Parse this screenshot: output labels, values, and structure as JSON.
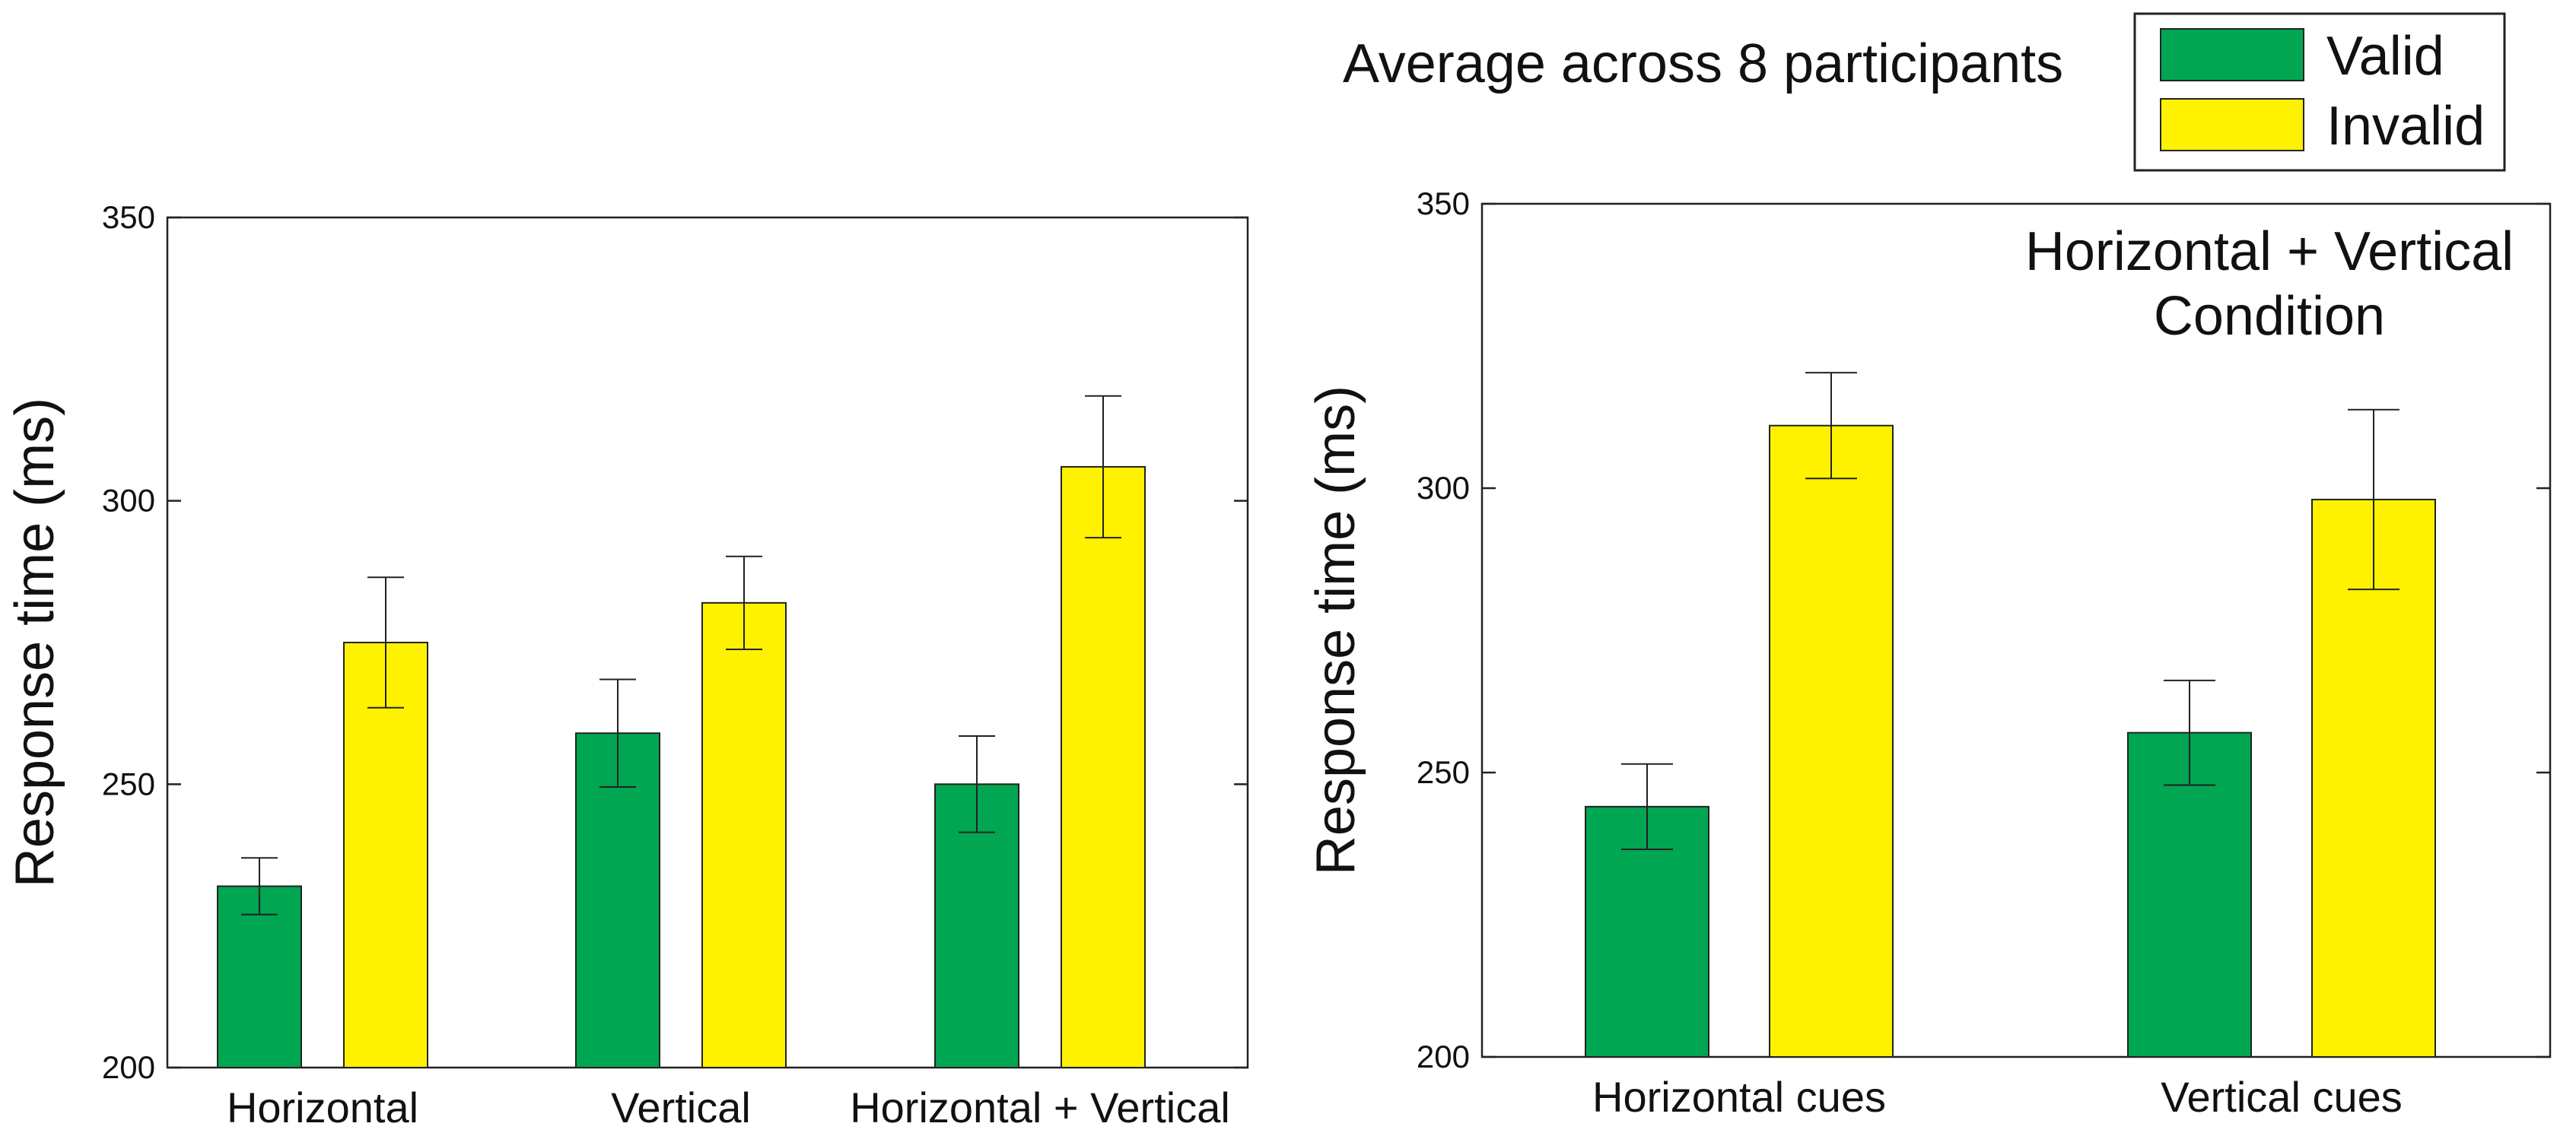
{
  "figure": {
    "suptitle": "Average across 8 participants"
  },
  "legend": {
    "placement": "top-right",
    "entries": [
      {
        "label": "Valid",
        "color": "#00A651"
      },
      {
        "label": "Invalid",
        "color": "#FFF200"
      }
    ]
  },
  "chart_data": [
    {
      "type": "bar",
      "title": "",
      "xlabel": "",
      "ylabel": "Response time (ms)",
      "ylim": [
        200,
        350
      ],
      "yticks": [
        200,
        250,
        300,
        350
      ],
      "categories": [
        "Horizontal",
        "Vertical",
        "Horizontal + Vertical"
      ],
      "series": [
        {
          "name": "Valid",
          "color": "#00A651",
          "values": [
            232,
            259,
            250
          ],
          "errors": [
            5,
            9.5,
            8.5
          ]
        },
        {
          "name": "Invalid",
          "color": "#FFF200",
          "values": [
            275,
            282,
            306
          ],
          "errors": [
            11.5,
            8.2,
            12.5
          ]
        }
      ]
    },
    {
      "type": "bar",
      "title": "",
      "annotation": [
        "Horizontal + Vertical",
        "Condition"
      ],
      "xlabel": "",
      "ylabel": "Response time (ms)",
      "ylim": [
        200,
        350
      ],
      "yticks": [
        200,
        250,
        300,
        350
      ],
      "categories": [
        "Horizontal cues",
        "Vertical cues"
      ],
      "series": [
        {
          "name": "Valid",
          "color": "#00A651",
          "values": [
            244,
            257
          ],
          "errors": [
            7.5,
            9.2
          ]
        },
        {
          "name": "Invalid",
          "color": "#FFF200",
          "values": [
            311,
            298
          ],
          "errors": [
            9.3,
            15.8
          ]
        }
      ]
    }
  ]
}
